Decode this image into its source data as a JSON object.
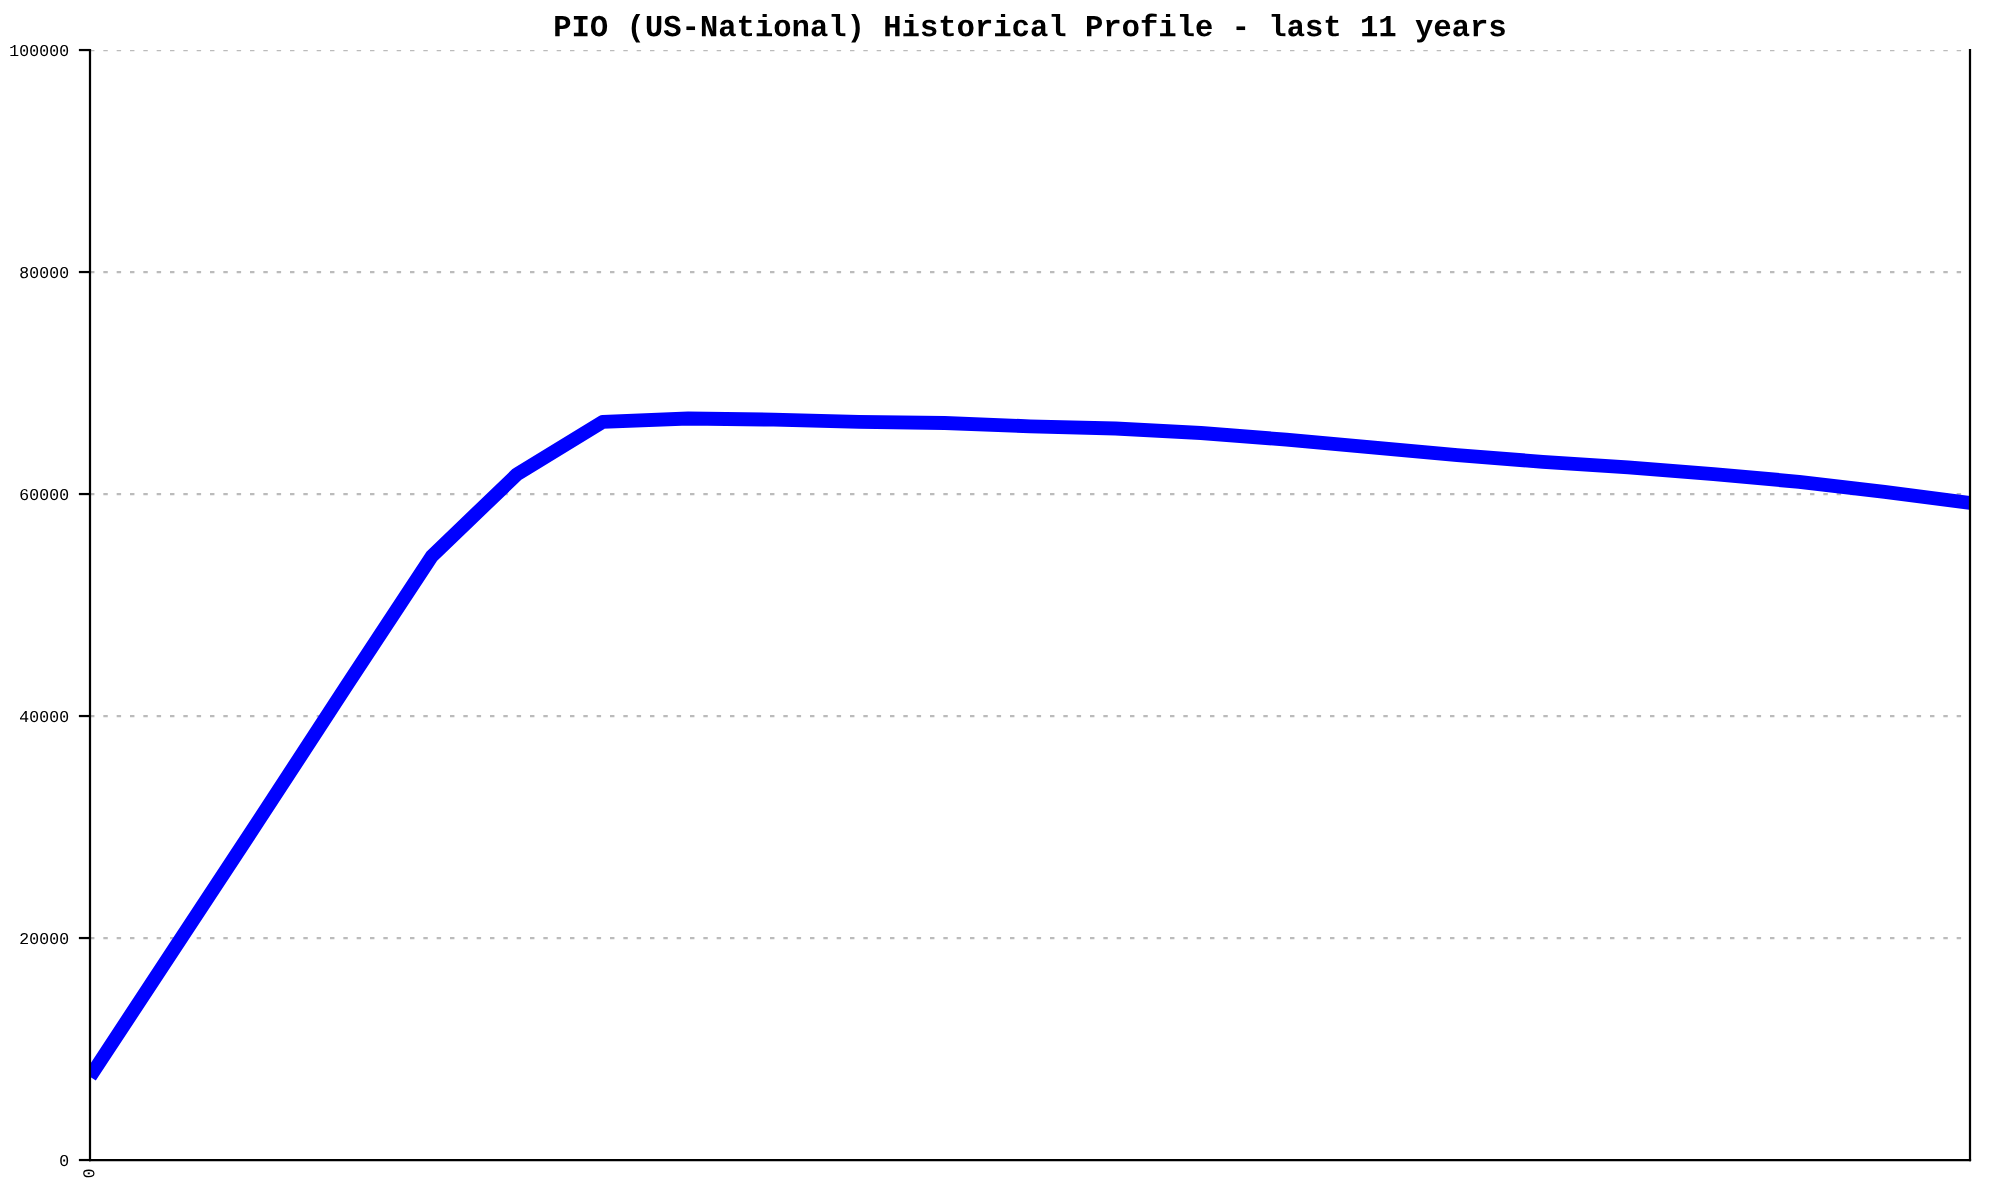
{
  "chart_data": {
    "type": "line",
    "title": "PIO (US-National) Historical Profile - last 11 years",
    "categories": [
      "0",
      null,
      null,
      null,
      null,
      null,
      null,
      null,
      null,
      null,
      null,
      null,
      null,
      null,
      null,
      null,
      null,
      null,
      null,
      null,
      null,
      null,
      null
    ],
    "series": [
      {
        "color": "#0000ff",
        "values": [
          7500,
          19200,
          30900,
          42700,
          54400,
          61800,
          66500,
          66800,
          66700,
          66500,
          66400,
          66100,
          65900,
          65500,
          64900,
          64200,
          63500,
          62900,
          62400,
          61800,
          61100,
          60200,
          59200
        ]
      }
    ],
    "ylim": [
      0,
      100000
    ],
    "yticks": [
      0,
      20000,
      40000,
      60000,
      80000,
      100000
    ],
    "grid": "y",
    "marker": "none",
    "line_style": "solid"
  }
}
